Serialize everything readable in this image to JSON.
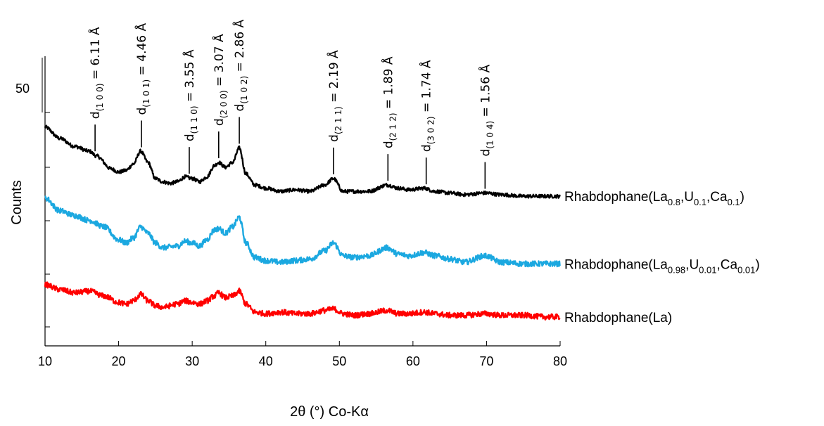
{
  "chart_data": {
    "type": "line",
    "xlabel": "2θ (°)  Co-Kα",
    "ylabel": "Counts",
    "xlim": [
      10,
      80
    ],
    "x_ticks": [
      "10",
      "20",
      "30",
      "40",
      "50",
      "60",
      "70",
      "80"
    ],
    "scale_bar_label": "50",
    "grid": false,
    "series": [
      {
        "name": "Rhabdophane(La0.8,U0.1,Ca0.1)",
        "label_parts": [
          [
            "Rhabdophane(La",
            false
          ],
          [
            "0.8",
            true
          ],
          [
            ",U",
            false
          ],
          [
            "0.1",
            true
          ],
          [
            ",Ca",
            false
          ],
          [
            "0.1",
            true
          ],
          [
            ")",
            false
          ]
        ],
        "color": "#000000",
        "x": [
          10,
          12,
          14,
          16,
          17,
          19,
          20,
          21,
          22,
          23,
          24,
          25,
          26,
          27,
          28,
          29,
          30,
          31,
          32,
          33,
          33.6,
          34.5,
          35.5,
          36.4,
          37.3,
          38.5,
          40,
          42,
          44,
          46,
          48,
          49.2,
          50.5,
          52,
          54,
          56.5,
          58,
          59.5,
          61.5,
          63,
          65,
          67,
          69.8,
          72,
          75,
          78,
          80
        ],
        "y": [
          136,
          129,
          124,
          121,
          118,
          110,
          108,
          109,
          113,
          121,
          114,
          104,
          102,
          101,
          102,
          105,
          104,
          102,
          105,
          112,
          114,
          111,
          114,
          123,
          107,
          100,
          98,
          96,
          97,
          96,
          100,
          104,
          96,
          96,
          96,
          100,
          98,
          97,
          98,
          96,
          95,
          94,
          95,
          94,
          93,
          93,
          93
        ]
      },
      {
        "name": "Rhabdophane(La0.98,U0.01,Ca0.01)",
        "label_parts": [
          [
            "Rhabdophane(La",
            false
          ],
          [
            "0.98",
            true
          ],
          [
            ",U",
            false
          ],
          [
            "0.01",
            true
          ],
          [
            ",Ca",
            false
          ],
          [
            "0.01",
            true
          ],
          [
            ")",
            false
          ]
        ],
        "color": "#1ba8e0",
        "x": [
          10,
          12,
          14,
          16,
          18,
          20,
          21,
          22,
          23,
          24,
          25,
          26,
          28,
          29,
          30,
          31,
          32,
          33,
          33.6,
          34.5,
          35.5,
          36.4,
          37.3,
          38.5,
          40,
          42,
          44,
          46,
          48,
          49.2,
          50.5,
          52,
          54,
          56.5,
          58,
          59.5,
          61.5,
          63,
          65,
          67,
          69.8,
          72,
          75,
          78,
          80
        ],
        "y": [
          92,
          84,
          81,
          78,
          74,
          66,
          64,
          67,
          74,
          70,
          64,
          61,
          62,
          65,
          64,
          62,
          66,
          72,
          73,
          70,
          74,
          80,
          64,
          55,
          53,
          52,
          53,
          54,
          59,
          64,
          56,
          55,
          56,
          61,
          57,
          56,
          58,
          56,
          54,
          52,
          56,
          52,
          51,
          51,
          51
        ]
      },
      {
        "name": "Rhabdophane(La)",
        "label_parts": [
          [
            "Rhabdophane(La)",
            false
          ]
        ],
        "color": "#ff0000",
        "x": [
          10,
          12,
          14,
          16,
          18,
          20,
          21,
          22,
          23,
          24,
          25,
          26,
          28,
          29,
          30,
          31,
          32,
          33,
          33.6,
          34.5,
          35.5,
          36.4,
          37.3,
          38.5,
          40,
          42,
          44,
          46,
          48,
          49.2,
          50.5,
          52,
          54,
          56.5,
          58,
          59.5,
          61.5,
          63,
          65,
          67,
          69.8,
          72,
          75,
          78,
          80
        ],
        "y": [
          38,
          35,
          33,
          34,
          31,
          27,
          26,
          28,
          32,
          28,
          25,
          24,
          26,
          28,
          27,
          26,
          28,
          31,
          33,
          30,
          31,
          34,
          26,
          21,
          20,
          21,
          20,
          20,
          22,
          23,
          20,
          19,
          20,
          22,
          20,
          20,
          21,
          20,
          19,
          19,
          20,
          19,
          19,
          18,
          18
        ]
      }
    ],
    "annotations": [
      {
        "two_theta": 16.8,
        "hkl": "(1 0 0)",
        "d": "6.11 Å"
      },
      {
        "two_theta": 23.1,
        "hkl": "(1 0 1)",
        "d": "4.46 Å"
      },
      {
        "two_theta": 29.6,
        "hkl": "(1 1 0)",
        "d": "3.55 Å"
      },
      {
        "two_theta": 33.6,
        "hkl": "(2 0 0)",
        "d": "3.07 Å"
      },
      {
        "two_theta": 36.4,
        "hkl": "(1 0 2)",
        "d": "2.86 Å"
      },
      {
        "two_theta": 49.2,
        "hkl": "(2 1 1)",
        "d": "2.19 Å"
      },
      {
        "two_theta": 56.6,
        "hkl": "(2  1 2)",
        "d": "1.89 Å"
      },
      {
        "two_theta": 61.8,
        "hkl": "(3 0 2)",
        "d": "1.74 Å"
      },
      {
        "two_theta": 69.8,
        "hkl": "(1 0 4)",
        "d": "1.56 Å"
      }
    ]
  }
}
